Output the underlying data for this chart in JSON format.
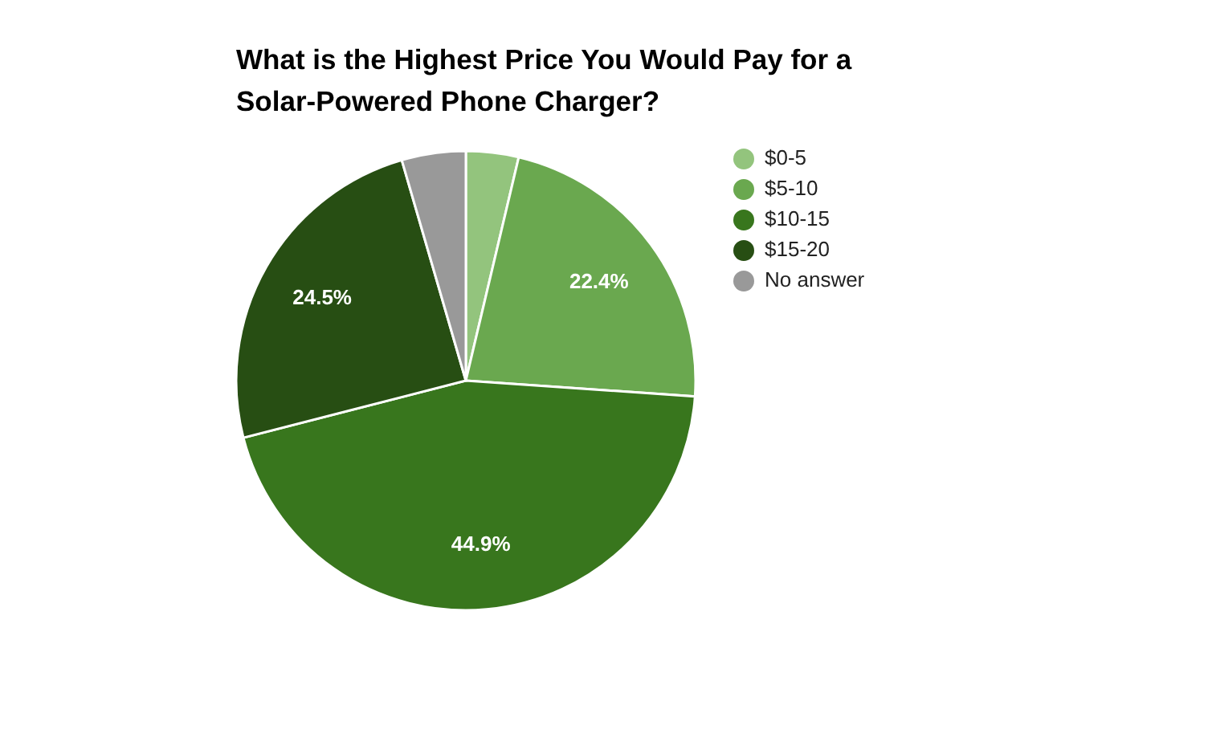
{
  "chart_data": {
    "type": "pie",
    "title": "What is the Highest Price You Would Pay for a Solar-Powered Phone Charger?",
    "categories": [
      "$0-5",
      "$5-10",
      "$10-15",
      "$15-20",
      "No answer"
    ],
    "values": [
      3.7,
      22.4,
      44.9,
      24.5,
      4.5
    ],
    "colors": [
      "#93c47d",
      "#6aa84f",
      "#38761d",
      "#274e13",
      "#999999"
    ],
    "value_labels": [
      null,
      "22.4%",
      "44.9%",
      "24.5%",
      null
    ],
    "legend": "right"
  }
}
